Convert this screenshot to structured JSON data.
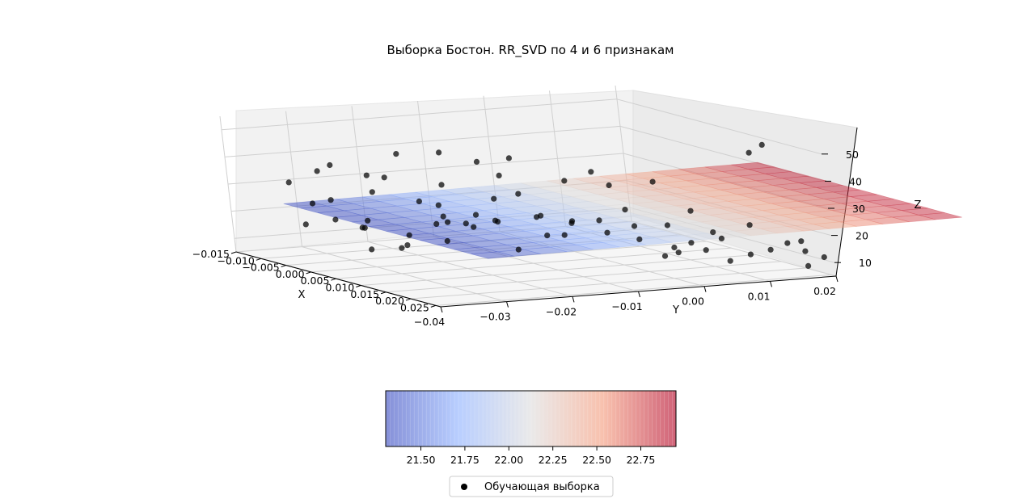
{
  "chart_data": {
    "type": "scatter",
    "projection": "3d",
    "title": "Выборка Бостон. RR_SVD по 4 и 6 признакам",
    "xlabel": "X",
    "ylabel": "Y",
    "zlabel": "Z",
    "xlim": [
      -0.015,
      0.026
    ],
    "ylim": [
      -0.04,
      0.02
    ],
    "zlim": [
      5,
      55
    ],
    "x_ticks": [
      "−0.015",
      "−0.010",
      "−0.005",
      "0.000",
      "0.005",
      "0.010",
      "0.015",
      "0.020",
      "0.025"
    ],
    "y_ticks": [
      "−0.04",
      "−0.03",
      "−0.02",
      "−0.01",
      "0.00",
      "0.01",
      "0.02"
    ],
    "z_ticks": [
      "10",
      "20",
      "30",
      "40",
      "50"
    ],
    "grid": true,
    "surface": {
      "colormap": "coolwarm",
      "alpha": 0.5,
      "plane": {
        "z0": 22.0,
        "dz_dx": 0,
        "dz_dy": 23
      }
    },
    "colorbar": {
      "min": 21.3,
      "max": 22.95,
      "ticks": [
        "21.50",
        "21.75",
        "22.00",
        "22.25",
        "22.50",
        "22.75"
      ],
      "tick_values": [
        21.5,
        21.75,
        22.0,
        22.25,
        22.5,
        22.75
      ]
    },
    "legend": {
      "label": "Обучающая выборка",
      "placement": "bottom-center"
    },
    "points": [
      [
        -0.002,
        -0.03,
        18.5
      ],
      [
        0.004,
        -0.034,
        22.1
      ],
      [
        -0.006,
        -0.025,
        28.7
      ],
      [
        0.009,
        -0.029,
        33.4
      ],
      [
        0.012,
        -0.036,
        45.0
      ],
      [
        0.001,
        -0.021,
        19.6
      ],
      [
        -0.009,
        -0.032,
        24.3
      ],
      [
        0.015,
        -0.024,
        50.0
      ],
      [
        0.003,
        -0.018,
        20.2
      ],
      [
        -0.004,
        -0.027,
        36.2
      ],
      [
        0.007,
        -0.031,
        15.6
      ],
      [
        0.01,
        -0.022,
        23.1
      ],
      [
        -0.001,
        -0.035,
        30.1
      ],
      [
        0.013,
        -0.028,
        27.5
      ],
      [
        0.005,
        -0.015,
        21.7
      ],
      [
        -0.007,
        -0.02,
        41.3
      ],
      [
        0.002,
        -0.026,
        16.9
      ],
      [
        0.018,
        -0.032,
        23.8
      ],
      [
        0.008,
        -0.017,
        31.6
      ],
      [
        -0.003,
        -0.012,
        19.3
      ],
      [
        0.011,
        -0.019,
        25.0
      ],
      [
        0.006,
        -0.023,
        48.8
      ],
      [
        -0.005,
        -0.016,
        22.6
      ],
      [
        0.014,
        -0.014,
        20.5
      ],
      [
        0.0,
        -0.01,
        34.9
      ],
      [
        0.016,
        -0.02,
        17.4
      ],
      [
        0.009,
        -0.011,
        24.7
      ],
      [
        -0.008,
        -0.013,
        28.1
      ],
      [
        0.004,
        -0.008,
        21.2
      ],
      [
        0.012,
        -0.009,
        38.7
      ],
      [
        0.019,
        -0.015,
        23.3
      ],
      [
        0.007,
        -0.005,
        19.9
      ],
      [
        -0.002,
        -0.006,
        26.4
      ],
      [
        0.015,
        -0.007,
        43.1
      ],
      [
        0.01,
        -0.003,
        22.0
      ],
      [
        0.003,
        -0.002,
        18.1
      ],
      [
        0.017,
        -0.004,
        29.6
      ],
      [
        0.021,
        -0.01,
        24.2
      ],
      [
        0.013,
        0.0,
        20.8
      ],
      [
        0.006,
        0.002,
        32.0
      ],
      [
        0.02,
        -0.001,
        13.4
      ],
      [
        0.022,
        -0.006,
        21.5
      ],
      [
        0.018,
        0.002,
        15.0
      ],
      [
        0.024,
        -0.003,
        27.1
      ],
      [
        0.016,
        0.004,
        11.8
      ],
      [
        0.023,
        0.001,
        19.4
      ],
      [
        0.019,
        0.006,
        13.8
      ],
      [
        0.025,
        0.003,
        23.9
      ],
      [
        0.021,
        0.008,
        10.4
      ],
      [
        0.017,
        0.01,
        16.3
      ],
      [
        0.024,
        0.009,
        14.1
      ],
      [
        0.022,
        0.012,
        50.0
      ],
      [
        0.02,
        0.015,
        12.7
      ],
      [
        0.025,
        0.014,
        17.8
      ],
      [
        0.018,
        0.017,
        50.0
      ],
      [
        0.023,
        0.018,
        13.1
      ],
      [
        0.026,
        0.016,
        9.5
      ],
      [
        0.021,
        0.019,
        15.6
      ],
      [
        0.024,
        0.02,
        11.0
      ],
      [
        0.019,
        0.013,
        21.7
      ],
      [
        0.014,
        0.008,
        25.4
      ],
      [
        0.011,
        0.005,
        35.2
      ],
      [
        0.008,
        -0.014,
        46.0
      ],
      [
        -0.01,
        -0.028,
        37.2
      ],
      [
        -0.012,
        -0.033,
        30.8
      ],
      [
        0.001,
        -0.038,
        42.3
      ],
      [
        0.005,
        -0.039,
        26.6
      ],
      [
        -0.004,
        -0.037,
        20.0
      ],
      [
        0.009,
        -0.037,
        17.2
      ],
      [
        0.002,
        -0.032,
        23.4
      ],
      [
        0.015,
        -0.03,
        31.0
      ],
      [
        0.011,
        -0.033,
        19.0
      ]
    ]
  }
}
